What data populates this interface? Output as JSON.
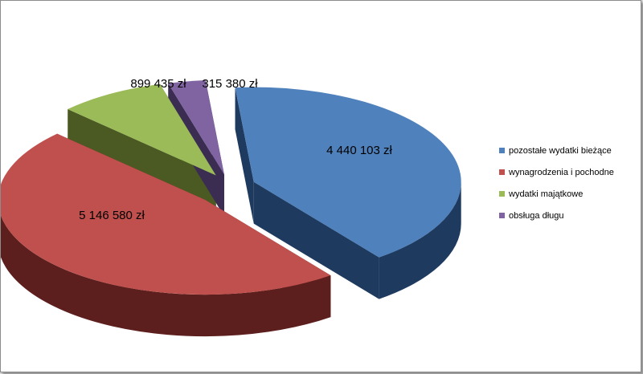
{
  "chart_data": {
    "type": "pie",
    "style": "3d-exploded",
    "categories": [
      "pozostałe wydatki bieżące",
      "wynagrodzenia i pochodne",
      "wydatki majątkowe",
      "obsługa długu"
    ],
    "values": [
      4440103,
      5146580,
      899435,
      315380
    ],
    "labels": [
      "4 440 103 zł",
      "5 146 580 zł",
      "899 435 zł",
      "315 380 zł"
    ],
    "colors": [
      "#4f81bd",
      "#c0504d",
      "#9bbb59",
      "#8064a2"
    ],
    "side_colors": [
      "#1f3a5f",
      "#5c1f1d",
      "#4a5a22",
      "#3b2d52"
    ],
    "legend": {
      "position": "right"
    }
  }
}
